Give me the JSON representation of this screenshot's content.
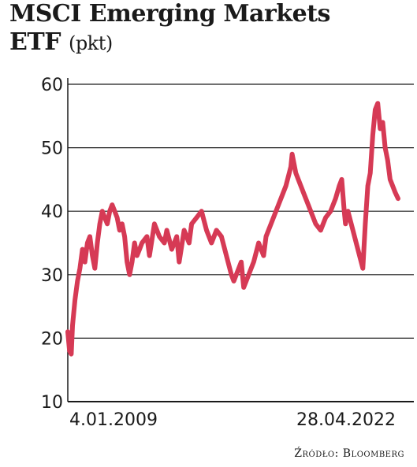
{
  "title_line1": "MSCI Emerging Markets",
  "title_line2": "ETF",
  "title_unit": "(pkt)",
  "source": "Źródło: Bloomberg",
  "colors": {
    "line": "#d63a55",
    "grid": "#1a1a1a",
    "text": "#1a1a1a"
  },
  "chart_data": {
    "type": "line",
    "title": "MSCI Emerging Markets ETF (pkt)",
    "xlabel": "",
    "ylabel": "",
    "x_tick_labels": [
      "4.01.2009",
      "28.04.2022"
    ],
    "x_range": [
      2009.01,
      2022.32
    ],
    "ylim": [
      10,
      60
    ],
    "yticks": [
      10,
      20,
      30,
      40,
      50,
      60
    ],
    "grid": true,
    "series": [
      {
        "x": [
          2009.01,
          2009.08,
          2009.15,
          2009.2,
          2009.3,
          2009.4,
          2009.5,
          2009.6,
          2009.7,
          2009.8,
          2009.9,
          2010.0,
          2010.1,
          2010.2,
          2010.3,
          2010.4,
          2010.5,
          2010.6,
          2010.7,
          2010.8,
          2010.9,
          2011.0,
          2011.1,
          2011.2,
          2011.3,
          2011.4,
          2011.5,
          2011.6,
          2011.7,
          2011.8,
          2011.9,
          2012.0,
          2012.2,
          2012.3,
          2012.5,
          2012.7,
          2012.9,
          2013.0,
          2013.2,
          2013.4,
          2013.5,
          2013.7,
          2013.9,
          2014.0,
          2014.2,
          2014.4,
          2014.6,
          2014.8,
          2015.0,
          2015.2,
          2015.4,
          2015.6,
          2015.7,
          2015.9,
          2016.0,
          2016.1,
          2016.3,
          2016.5,
          2016.7,
          2016.9,
          2017.0,
          2017.2,
          2017.4,
          2017.6,
          2017.8,
          2018.0,
          2018.05,
          2018.2,
          2018.4,
          2018.6,
          2018.8,
          2019.0,
          2019.2,
          2019.4,
          2019.6,
          2019.8,
          2019.95,
          2020.05,
          2020.15,
          2020.2,
          2020.3,
          2020.5,
          2020.7,
          2020.9,
          2021.0,
          2021.1,
          2021.2,
          2021.3,
          2021.4,
          2021.5,
          2021.6,
          2021.7,
          2021.8,
          2021.9,
          2022.0,
          2022.1,
          2022.2,
          2022.32
        ],
        "y": [
          21,
          18,
          17.5,
          22,
          26,
          29,
          31,
          34,
          32,
          35,
          36,
          33,
          31,
          35,
          38,
          40,
          39,
          38,
          40,
          41,
          40,
          39,
          37,
          38,
          36,
          32,
          30,
          32,
          35,
          33,
          34,
          35,
          36,
          33,
          38,
          36,
          35,
          37,
          34,
          36,
          32,
          37,
          35,
          38,
          39,
          40,
          37,
          35,
          37,
          36,
          33,
          30,
          29,
          31,
          32,
          28,
          30,
          32,
          35,
          33,
          36,
          38,
          40,
          42,
          44,
          47,
          49,
          46,
          44,
          42,
          40,
          38,
          37,
          39,
          40,
          42,
          44,
          45,
          40,
          38,
          40,
          37,
          34,
          31,
          38,
          44,
          46,
          52,
          56,
          57,
          53,
          54,
          50,
          48,
          45,
          44,
          43,
          42
        ]
      }
    ]
  }
}
